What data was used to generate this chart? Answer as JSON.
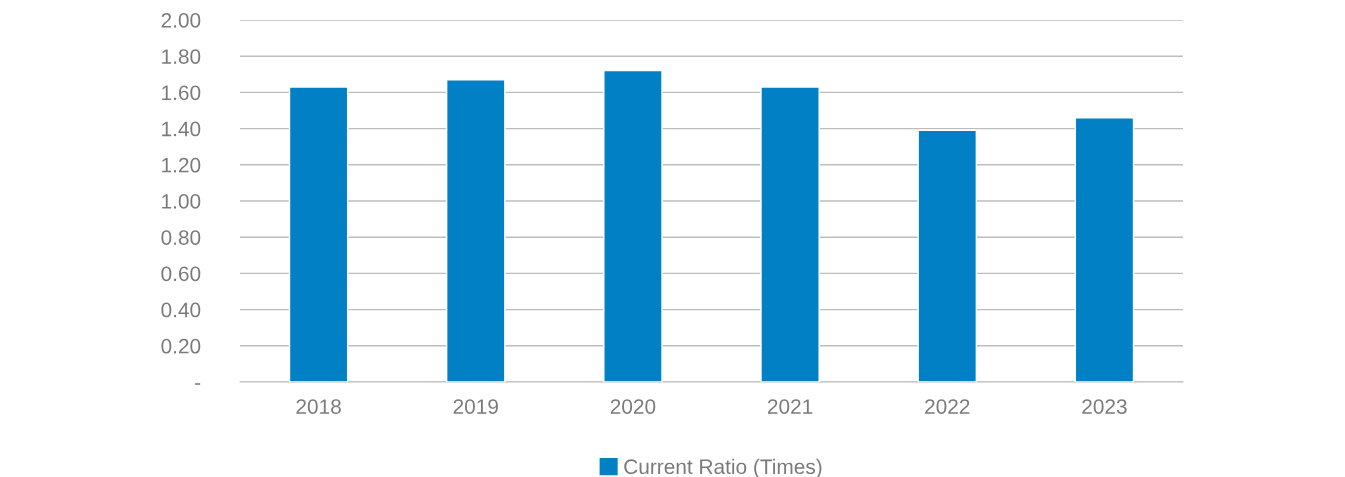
{
  "chart_data": {
    "type": "bar",
    "categories": [
      "2018",
      "2019",
      "2020",
      "2021",
      "2022",
      "2023"
    ],
    "series": [
      {
        "name": "Current Ratio (Times)",
        "color": "#0180c6",
        "values": [
          1.63,
          1.67,
          1.72,
          1.63,
          1.39,
          1.46
        ]
      }
    ],
    "ylim": [
      0,
      2.0
    ],
    "yticks": [
      {
        "value": 0,
        "label": "-"
      },
      {
        "value": 0.2,
        "label": "0.20"
      },
      {
        "value": 0.4,
        "label": "0.40"
      },
      {
        "value": 0.6,
        "label": "0.60"
      },
      {
        "value": 0.8,
        "label": "0.80"
      },
      {
        "value": 1.0,
        "label": "1.00"
      },
      {
        "value": 1.2,
        "label": "1.20"
      },
      {
        "value": 1.4,
        "label": "1.40"
      },
      {
        "value": 1.6,
        "label": "1.60"
      },
      {
        "value": 1.8,
        "label": "1.80"
      },
      {
        "value": 2.0,
        "label": "2.00"
      }
    ],
    "grid": "y",
    "legend": "bottom"
  }
}
